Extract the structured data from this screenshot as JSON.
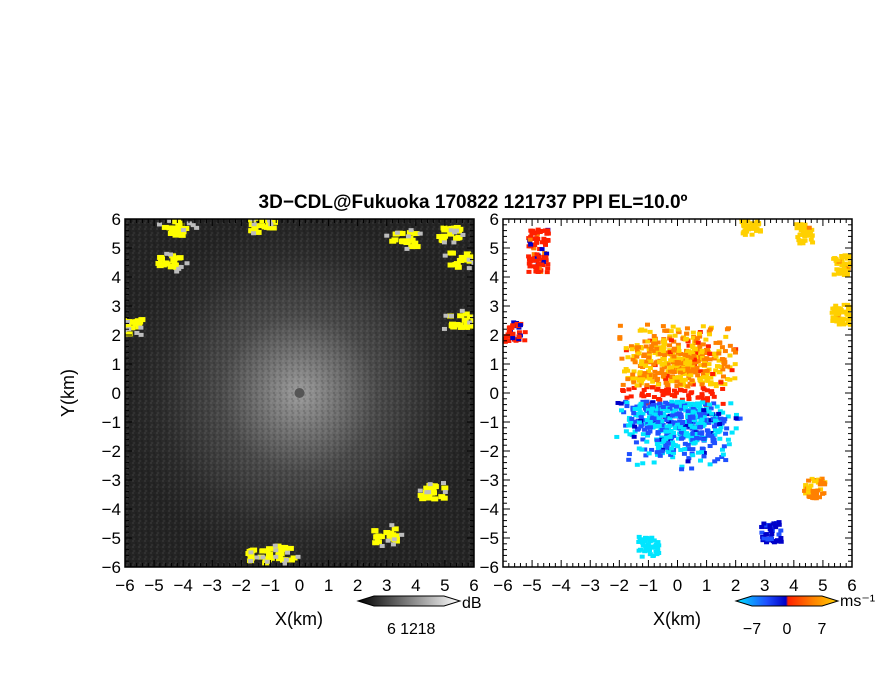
{
  "title": "3D−CDL@Fukuoka 170822 121737 PPI EL=10.0º",
  "chart_data": [
    {
      "type": "heatmap",
      "panel": "reflectivity",
      "xlabel": "X(km)",
      "ylabel": "Y(km)",
      "xlim": [
        -6,
        6
      ],
      "ylim": [
        -6,
        6
      ],
      "xticks": [
        "−6",
        "−5",
        "−4",
        "−3",
        "−2",
        "−1",
        "0",
        "1",
        "2",
        "3",
        "4",
        "5",
        "6"
      ],
      "yticks": [
        "−6",
        "−5",
        "−4",
        "−3",
        "−2",
        "−1",
        "0",
        "1",
        "2",
        "3",
        "4",
        "5",
        "6"
      ],
      "colorbar": {
        "unit": "dB",
        "ticks": [
          "6",
          "12",
          "18"
        ],
        "range": [
          0,
          24
        ],
        "colors": [
          "#000000",
          "#ffffff"
        ]
      },
      "clutter_color": "#ffff00",
      "clutter_regions": [
        {
          "x": -4.5,
          "y": 4.5
        },
        {
          "x": -4.2,
          "y": 5.7
        },
        {
          "x": -5.7,
          "y": 2.3
        },
        {
          "x": -1.3,
          "y": 5.8
        },
        {
          "x": 3.6,
          "y": 5.3
        },
        {
          "x": 5.2,
          "y": 5.5
        },
        {
          "x": 5.6,
          "y": 4.6
        },
        {
          "x": 5.6,
          "y": 2.5
        },
        {
          "x": 4.6,
          "y": -3.4
        },
        {
          "x": 2.9,
          "y": -4.9
        },
        {
          "x": -0.6,
          "y": -5.5
        },
        {
          "x": -1.4,
          "y": -5.6
        }
      ]
    },
    {
      "type": "heatmap",
      "panel": "doppler_velocity",
      "xlabel": "X(km)",
      "xlim": [
        -6,
        6
      ],
      "ylim": [
        -6,
        6
      ],
      "xticks": [
        "−6",
        "−5",
        "−4",
        "−3",
        "−2",
        "−1",
        "0",
        "1",
        "2",
        "3",
        "4",
        "5",
        "6"
      ],
      "yticks": [
        "−6",
        "−5",
        "−4",
        "−3",
        "−2",
        "−1",
        "0",
        "1",
        "2",
        "3",
        "4",
        "5",
        "6"
      ],
      "colorbar": {
        "unit": "ms⁻¹",
        "ticks": [
          "−7",
          "0",
          "7"
        ],
        "range": [
          -7,
          7
        ],
        "colors": [
          "#00e5ff",
          "#1e50ff",
          "#0000c8",
          "#ff2000",
          "#ff8000",
          "#ffd000"
        ]
      },
      "echo_regions": [
        {
          "x": 0,
          "y": 1,
          "v": 5
        },
        {
          "x": 0,
          "y": -1.5,
          "v": -5
        },
        {
          "x": -5.6,
          "y": 2.1,
          "v": 1
        },
        {
          "x": -4.8,
          "y": 4.5,
          "v": 1
        },
        {
          "x": -4.8,
          "y": 5.3,
          "v": 1
        },
        {
          "x": 2.5,
          "y": 5.8,
          "v": 6
        },
        {
          "x": 4.4,
          "y": 5.5,
          "v": 6
        },
        {
          "x": 5.7,
          "y": 4.4,
          "v": 6
        },
        {
          "x": 5.6,
          "y": 2.7,
          "v": 6
        },
        {
          "x": 4.7,
          "y": -3.3,
          "v": 4
        },
        {
          "x": 3.2,
          "y": -4.8,
          "v": -2
        },
        {
          "x": -1.0,
          "y": -5.3,
          "v": -7
        }
      ]
    }
  ]
}
